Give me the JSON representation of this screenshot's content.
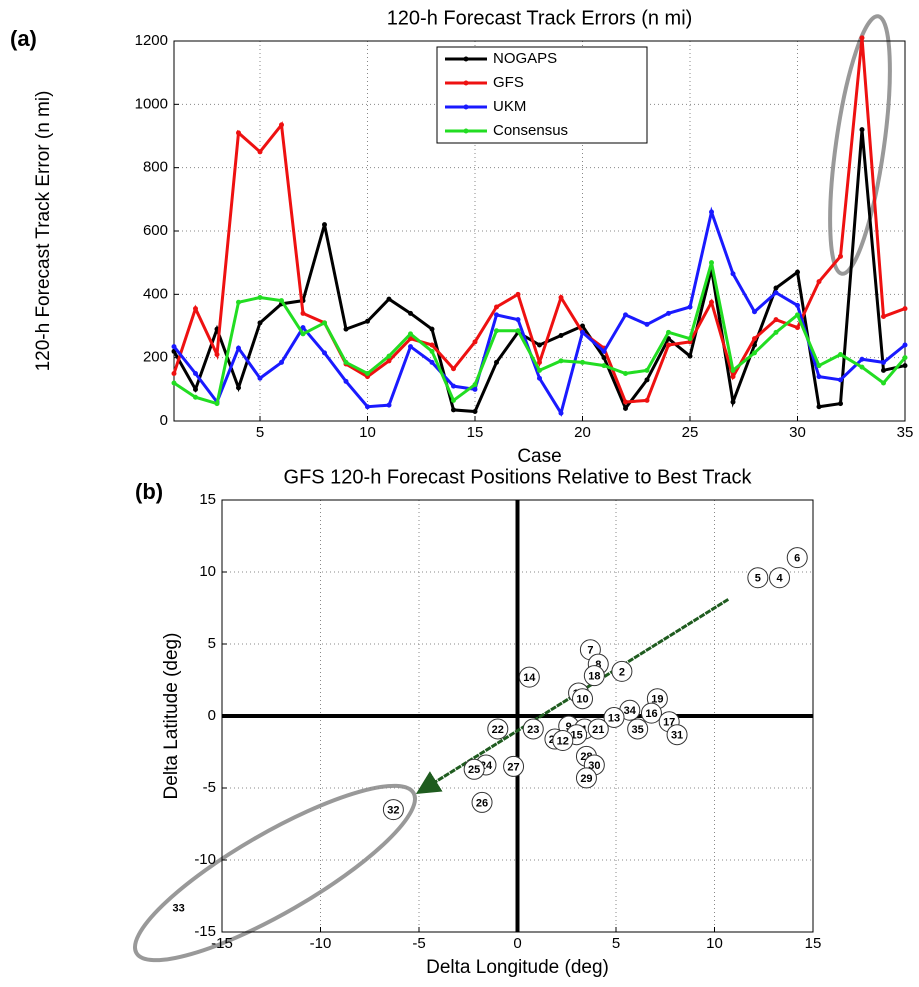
{
  "panel_labels": [
    "(a)",
    "(b)"
  ],
  "chart_data": [
    {
      "type": "line",
      "title": "120-h Forecast Track Errors (n mi)",
      "x_label": "Case",
      "y_label": "120-h Forecast Track Error (n mi)",
      "x": [
        1,
        2,
        3,
        4,
        5,
        6,
        7,
        8,
        9,
        10,
        11,
        12,
        13,
        14,
        15,
        16,
        17,
        18,
        19,
        20,
        21,
        22,
        23,
        24,
        25,
        26,
        27,
        28,
        29,
        30,
        31,
        32,
        33,
        34,
        35
      ],
      "xlim": [
        1,
        35
      ],
      "xticks": [
        5,
        10,
        15,
        20,
        25,
        30,
        35
      ],
      "ylim": [
        0,
        1200
      ],
      "yticks": [
        0,
        200,
        400,
        600,
        800,
        1000,
        1200
      ],
      "grid": true,
      "legend": "top-center",
      "series": [
        {
          "name": "NOGAPS",
          "color": "#000000",
          "values": [
            220,
            100,
            290,
            105,
            310,
            370,
            380,
            620,
            290,
            315,
            385,
            340,
            290,
            35,
            30,
            185,
            280,
            240,
            270,
            300,
            200,
            40,
            130,
            260,
            205,
            480,
            60,
            240,
            420,
            470,
            45,
            55,
            920,
            160,
            175
          ]
        },
        {
          "name": "GFS",
          "color": "#ee1111",
          "values": [
            150,
            355,
            210,
            910,
            850,
            935,
            340,
            310,
            180,
            140,
            190,
            260,
            240,
            165,
            250,
            360,
            400,
            185,
            390,
            280,
            230,
            60,
            65,
            240,
            250,
            375,
            140,
            260,
            320,
            295,
            440,
            520,
            1210,
            330,
            355
          ]
        },
        {
          "name": "UKM",
          "color": "#1a1aff",
          "values": [
            235,
            150,
            60,
            230,
            135,
            185,
            295,
            215,
            125,
            45,
            50,
            235,
            185,
            110,
            100,
            335,
            320,
            135,
            25,
            280,
            220,
            335,
            305,
            340,
            360,
            660,
            465,
            345,
            405,
            365,
            140,
            130,
            195,
            185,
            240
          ]
        },
        {
          "name": "Consensus",
          "color": "#22dd22",
          "values": [
            120,
            75,
            55,
            375,
            390,
            380,
            275,
            310,
            185,
            150,
            205,
            275,
            220,
            65,
            115,
            285,
            285,
            160,
            190,
            185,
            175,
            150,
            160,
            280,
            260,
            500,
            160,
            215,
            280,
            335,
            175,
            210,
            170,
            120,
            200
          ]
        }
      ]
    },
    {
      "type": "scatter",
      "title": "GFS 120-h Forecast Positions Relative to Best Track",
      "x_label": "Delta Longitude (deg)",
      "y_label": "Delta Latitude (deg)",
      "xlim": [
        -15,
        15
      ],
      "xticks": [
        -15,
        -10,
        -5,
        0,
        5,
        10,
        15
      ],
      "ylim": [
        -15,
        15
      ],
      "yticks": [
        -15,
        -10,
        -5,
        0,
        5,
        10,
        15
      ],
      "grid": true,
      "labels": [
        "6",
        "5",
        "4",
        "7",
        "8",
        "18",
        "2",
        "14",
        "11",
        "10",
        "19",
        "34",
        "16",
        "13",
        "17",
        "35",
        "31",
        "22",
        "23",
        "9",
        "1",
        "21",
        "15",
        "20",
        "12",
        "28",
        "30",
        "29",
        "24",
        "27",
        "25",
        "26",
        "32",
        "33"
      ],
      "x": [
        14.2,
        12.2,
        13.3,
        3.7,
        4.1,
        3.9,
        5.3,
        0.6,
        3.1,
        3.3,
        7.1,
        5.7,
        6.8,
        4.9,
        7.7,
        6.1,
        8.1,
        -1.0,
        0.8,
        2.6,
        3.4,
        4.1,
        3.0,
        1.9,
        2.3,
        3.5,
        3.9,
        3.5,
        -1.6,
        -0.2,
        -2.2,
        -1.8,
        -6.3,
        -17.2
      ],
      "y": [
        11.0,
        9.6,
        9.6,
        4.6,
        3.6,
        2.8,
        3.1,
        2.7,
        1.6,
        1.2,
        1.2,
        0.4,
        0.2,
        -0.1,
        -0.4,
        -0.9,
        -1.3,
        -0.9,
        -0.9,
        -0.7,
        -0.9,
        -0.9,
        -1.3,
        -1.6,
        -1.7,
        -2.8,
        -3.4,
        -4.3,
        -3.4,
        -3.5,
        -3.7,
        -6.0,
        -6.5,
        -13.3
      ],
      "arrow": {
        "color": "#1f5c1f",
        "x": [
          10.7,
          -4.9
        ],
        "y": [
          8.1,
          -5.2
        ]
      }
    }
  ]
}
